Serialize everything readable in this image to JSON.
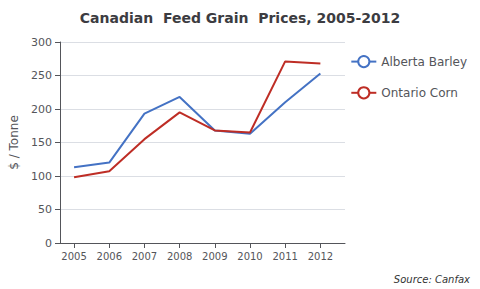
{
  "chart_data": {
    "type": "line",
    "title": "Canadian  Feed Grain  Prices, 2005-2012",
    "ylabel": "$ / Tonne",
    "annotation": "Source: Canfax",
    "x": [
      2005,
      2006,
      2007,
      2008,
      2009,
      2010,
      2011,
      2012
    ],
    "series": [
      {
        "name": "Alberta Barley",
        "color": "#4472C4",
        "values": [
          113,
          120,
          193,
          218,
          168,
          163,
          210,
          253
        ]
      },
      {
        "name": "Ontario Corn",
        "color": "#BE2D25",
        "values": [
          98,
          107,
          155,
          195,
          168,
          165,
          271,
          268
        ]
      }
    ],
    "xlim": [
      2004.6,
      2012.7
    ],
    "xticks": [
      2005,
      2006,
      2007,
      2008,
      2009,
      2010,
      2011,
      2012
    ],
    "ylim": [
      0,
      300
    ],
    "yticks": [
      0,
      50,
      100,
      150,
      200,
      250,
      300
    ],
    "grid": true,
    "legend": "right"
  }
}
